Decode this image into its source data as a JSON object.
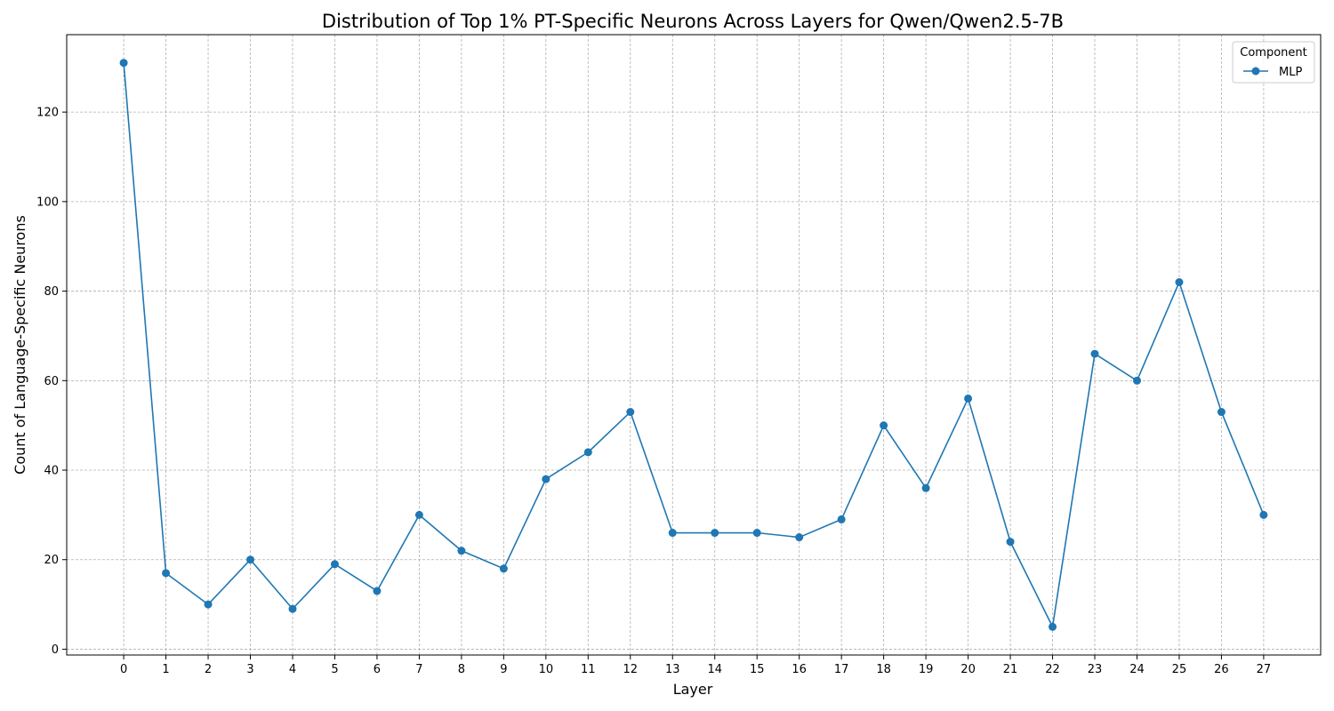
{
  "chart_data": {
    "type": "line",
    "title": "Distribution of Top 1% PT-Specific Neurons Across Layers for Qwen/Qwen2.5-7B",
    "xlabel": "Layer",
    "ylabel": "Count of Language-Specific Neurons",
    "x": [
      0,
      1,
      2,
      3,
      4,
      5,
      6,
      7,
      8,
      9,
      10,
      11,
      12,
      13,
      14,
      15,
      16,
      17,
      18,
      19,
      20,
      21,
      22,
      23,
      24,
      25,
      26,
      27
    ],
    "series": [
      {
        "name": "MLP",
        "color": "#1f77b4",
        "values": [
          131,
          17,
          10,
          20,
          9,
          19,
          13,
          30,
          22,
          18,
          38,
          44,
          53,
          26,
          26,
          26,
          25,
          29,
          50,
          36,
          56,
          24,
          5,
          66,
          60,
          82,
          53,
          30
        ]
      }
    ],
    "xlim": [
      -1.35,
      28.35
    ],
    "ylim": [
      -1.3,
      137.3
    ],
    "yticks": [
      0,
      20,
      40,
      60,
      80,
      100,
      120
    ],
    "grid": true,
    "legend": {
      "title": "Component",
      "placement": "top-right"
    }
  }
}
